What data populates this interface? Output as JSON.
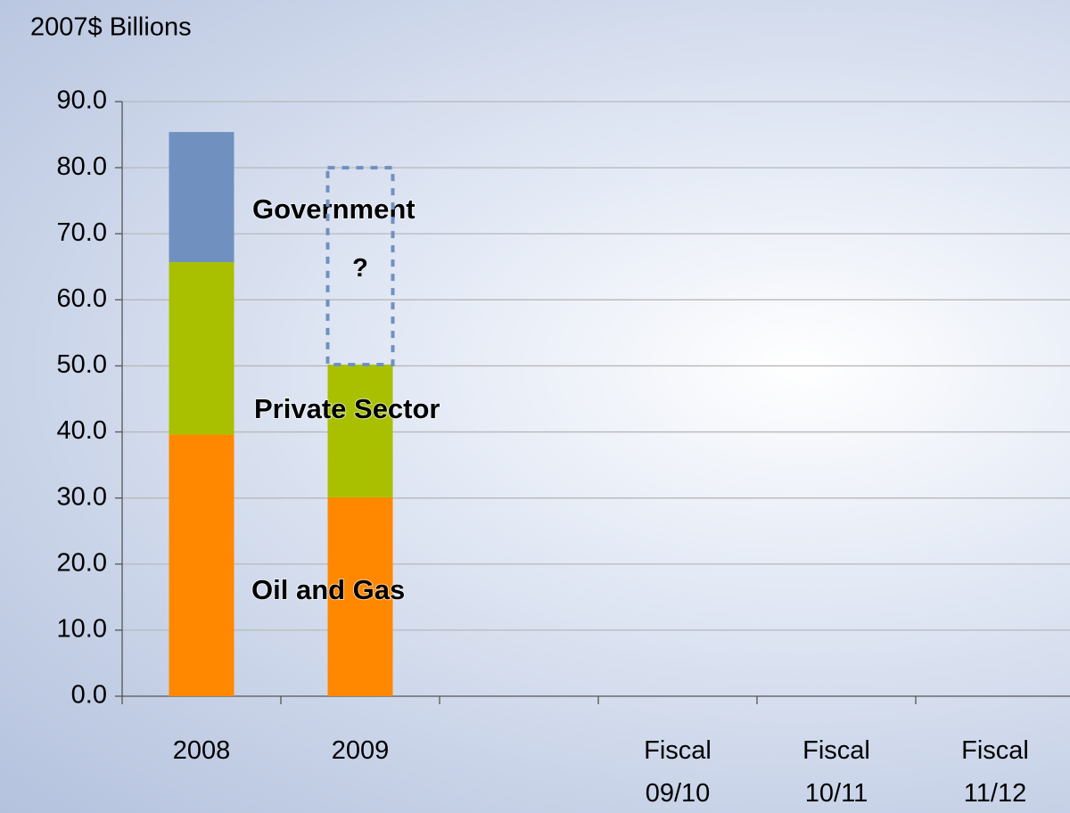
{
  "chart_data": {
    "type": "stacked_bar",
    "y_label": "2007$ Billions",
    "categories": [
      "2008",
      "2009",
      null,
      "Fiscal 09/10",
      "Fiscal 10/11",
      "Fiscal 11/12"
    ],
    "series": [
      {
        "name": "Oil and Gas",
        "color": "#ff8800",
        "values": [
          39.6,
          30.1,
          null,
          null,
          null,
          null
        ]
      },
      {
        "name": "Private Sector",
        "color": "#a8c000",
        "values": [
          26.1,
          20.1,
          null,
          null,
          null,
          null
        ]
      },
      {
        "name": "Government",
        "color": "#7090c0",
        "values": [
          19.7,
          null,
          null,
          null,
          null,
          null
        ]
      }
    ],
    "annotation": {
      "text": "?",
      "category": 1,
      "ymin": 50.2,
      "ymax": 80
    },
    "ylim": [
      0,
      90
    ],
    "yticks": [
      {
        "value": 0,
        "label": "0.0"
      },
      {
        "value": 10,
        "label": "10.0"
      },
      {
        "value": 20,
        "label": "20.0"
      },
      {
        "value": 30,
        "label": "30.0"
      },
      {
        "value": 40,
        "label": "40.0"
      },
      {
        "value": 50,
        "label": "50.0"
      },
      {
        "value": 60,
        "label": "60.0"
      },
      {
        "value": 70,
        "label": "70.0"
      },
      {
        "value": 80,
        "label": "80.0"
      },
      {
        "value": 90,
        "label": "90.0"
      }
    ],
    "grid": true
  }
}
